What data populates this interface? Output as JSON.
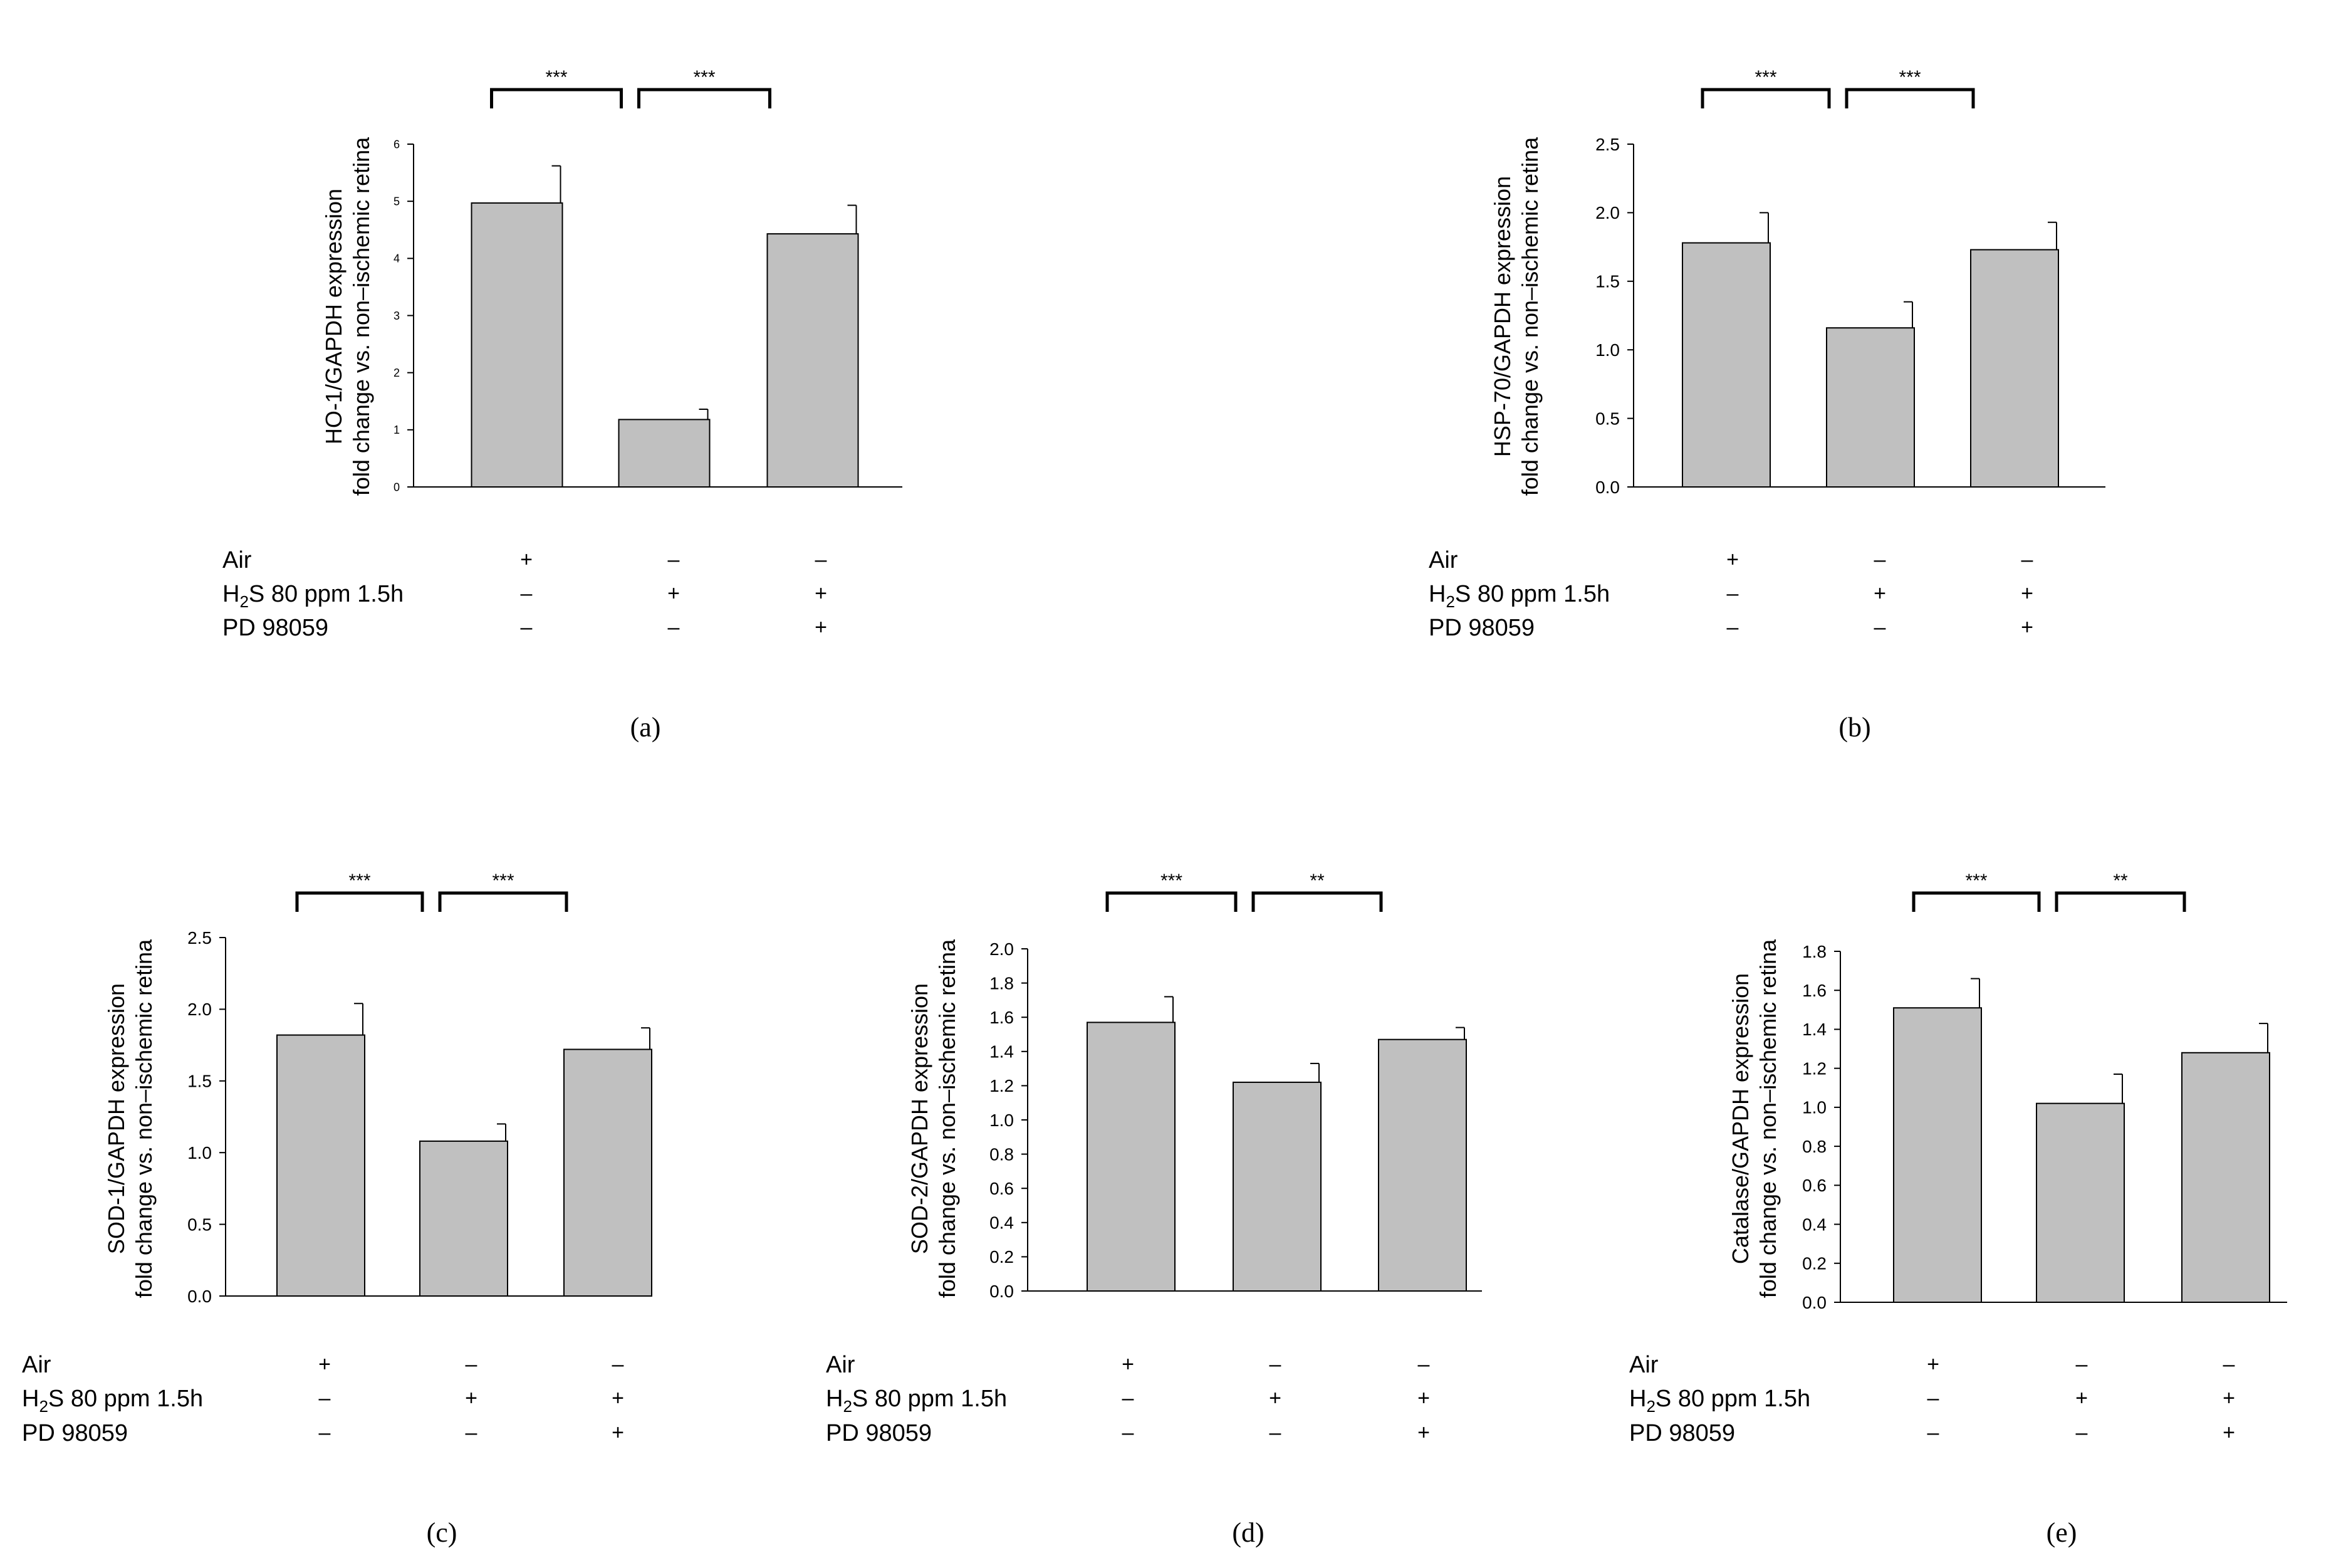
{
  "figure": {
    "colors": {
      "bar_fill": "#c0c0c0",
      "stroke": "#000000",
      "background": "#ffffff"
    },
    "row_labels": [
      "Air",
      "H2S 80 ppm 1.5h",
      "PD 98059"
    ],
    "conditions": [
      {
        "air": "+",
        "h2s": "–",
        "pd": "–"
      },
      {
        "air": "–",
        "h2s": "+",
        "pd": "–"
      },
      {
        "air": "–",
        "h2s": "+",
        "pd": "+"
      }
    ]
  },
  "chart_data": [
    {
      "panel": "(a)",
      "type": "bar",
      "ylabel": [
        "HO-1/GAPDH expression",
        "fold change vs. non–ischemic retina"
      ],
      "ylim": [
        0,
        6
      ],
      "yticks": [
        "0",
        "1",
        "2",
        "3",
        "4",
        "5",
        "6"
      ],
      "values": [
        4.97,
        1.18,
        4.43
      ],
      "errors": [
        0.65,
        0.18,
        0.5
      ],
      "significance": [
        "***",
        "***"
      ]
    },
    {
      "panel": "(b)",
      "type": "bar",
      "ylabel": [
        "HSP-70/GAPDH expression",
        "fold change vs. non–ischemic retina"
      ],
      "ylim": [
        0,
        2.5
      ],
      "yticks": [
        "0.0",
        "0.5",
        "1.0",
        "1.5",
        "2.0",
        "2.5"
      ],
      "values": [
        1.78,
        1.16,
        1.73
      ],
      "errors": [
        0.22,
        0.19,
        0.2
      ],
      "significance": [
        "***",
        "***"
      ]
    },
    {
      "panel": "(c)",
      "type": "bar",
      "ylabel": [
        "SOD-1/GAPDH expression",
        "fold change vs. non–ischemic retina"
      ],
      "ylim": [
        0,
        2.5
      ],
      "yticks": [
        "0.0",
        "0.5",
        "1.0",
        "1.5",
        "2.0",
        "2.5"
      ],
      "values": [
        1.82,
        1.08,
        1.72
      ],
      "errors": [
        0.22,
        0.12,
        0.15
      ],
      "significance": [
        "***",
        "***"
      ]
    },
    {
      "panel": "(d)",
      "type": "bar",
      "ylabel": [
        "SOD-2/GAPDH expression",
        "fold change vs. non–ischemic retina"
      ],
      "ylim": [
        0,
        2.0
      ],
      "yticks": [
        "0.0",
        "0.2",
        "0.4",
        "0.6",
        "0.8",
        "1.0",
        "1.2",
        "1.4",
        "1.6",
        "1.8",
        "2.0"
      ],
      "values": [
        1.57,
        1.22,
        1.47
      ],
      "errors": [
        0.15,
        0.11,
        0.07
      ],
      "significance": [
        "***",
        "**"
      ]
    },
    {
      "panel": "(e)",
      "type": "bar",
      "ylabel": [
        "Catalase/GAPDH expression",
        "fold change vs. non–ischemic retina"
      ],
      "ylim": [
        0,
        1.8
      ],
      "yticks": [
        "0.0",
        "0.2",
        "0.4",
        "0.6",
        "0.8",
        "1.0",
        "1.2",
        "1.4",
        "1.6",
        "1.8"
      ],
      "values": [
        1.51,
        1.02,
        1.28
      ],
      "errors": [
        0.15,
        0.15,
        0.15
      ],
      "significance": [
        "***",
        "**"
      ]
    }
  ]
}
